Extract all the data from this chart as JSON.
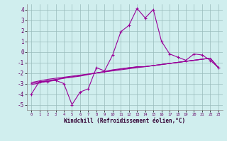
{
  "x": [
    0,
    1,
    2,
    3,
    4,
    5,
    6,
    7,
    8,
    9,
    10,
    11,
    12,
    13,
    14,
    15,
    16,
    17,
    18,
    19,
    20,
    21,
    22,
    23
  ],
  "line1": [
    -4.0,
    -2.8,
    -2.8,
    -2.7,
    -3.0,
    -5.0,
    -3.8,
    -3.5,
    -1.5,
    -1.8,
    -0.3,
    1.9,
    2.5,
    4.1,
    3.2,
    4.0,
    1.0,
    -0.2,
    -0.5,
    -0.8,
    -0.2,
    -0.3,
    -0.8,
    -1.5
  ],
  "line2": [
    -2.9,
    -2.75,
    -2.6,
    -2.5,
    -2.4,
    -2.3,
    -2.2,
    -2.1,
    -2.0,
    -1.9,
    -1.8,
    -1.7,
    -1.6,
    -1.5,
    -1.4,
    -1.3,
    -1.2,
    -1.1,
    -1.0,
    -0.9,
    -0.8,
    -0.7,
    -0.6,
    -1.5
  ],
  "line3": [
    -3.0,
    -2.85,
    -2.72,
    -2.6,
    -2.48,
    -2.36,
    -2.24,
    -2.12,
    -2.0,
    -1.88,
    -1.76,
    -1.64,
    -1.52,
    -1.4,
    -1.4,
    -1.3,
    -1.2,
    -1.1,
    -1.0,
    -0.9,
    -0.8,
    -0.7,
    -0.6,
    -1.5
  ],
  "line4": [
    -3.1,
    -2.95,
    -2.8,
    -2.65,
    -2.5,
    -2.4,
    -2.3,
    -2.15,
    -2.0,
    -1.85,
    -1.7,
    -1.6,
    -1.5,
    -1.45,
    -1.4,
    -1.3,
    -1.2,
    -1.1,
    -1.0,
    -0.9,
    -0.8,
    -0.7,
    -0.6,
    -1.5
  ],
  "line_color": "#990099",
  "bg_color": "#d0eeee",
  "grid_color": "#99bbbb",
  "ylim": [
    -5.5,
    4.5
  ],
  "xlim": [
    -0.5,
    23.5
  ],
  "yticks": [
    -5,
    -4,
    -3,
    -2,
    -1,
    0,
    1,
    2,
    3,
    4
  ],
  "xticks": [
    0,
    1,
    2,
    3,
    4,
    5,
    6,
    7,
    8,
    9,
    10,
    11,
    12,
    13,
    14,
    15,
    16,
    17,
    18,
    19,
    20,
    21,
    22,
    23
  ],
  "xlabel": "Windchill (Refroidissement éolien,°C)"
}
